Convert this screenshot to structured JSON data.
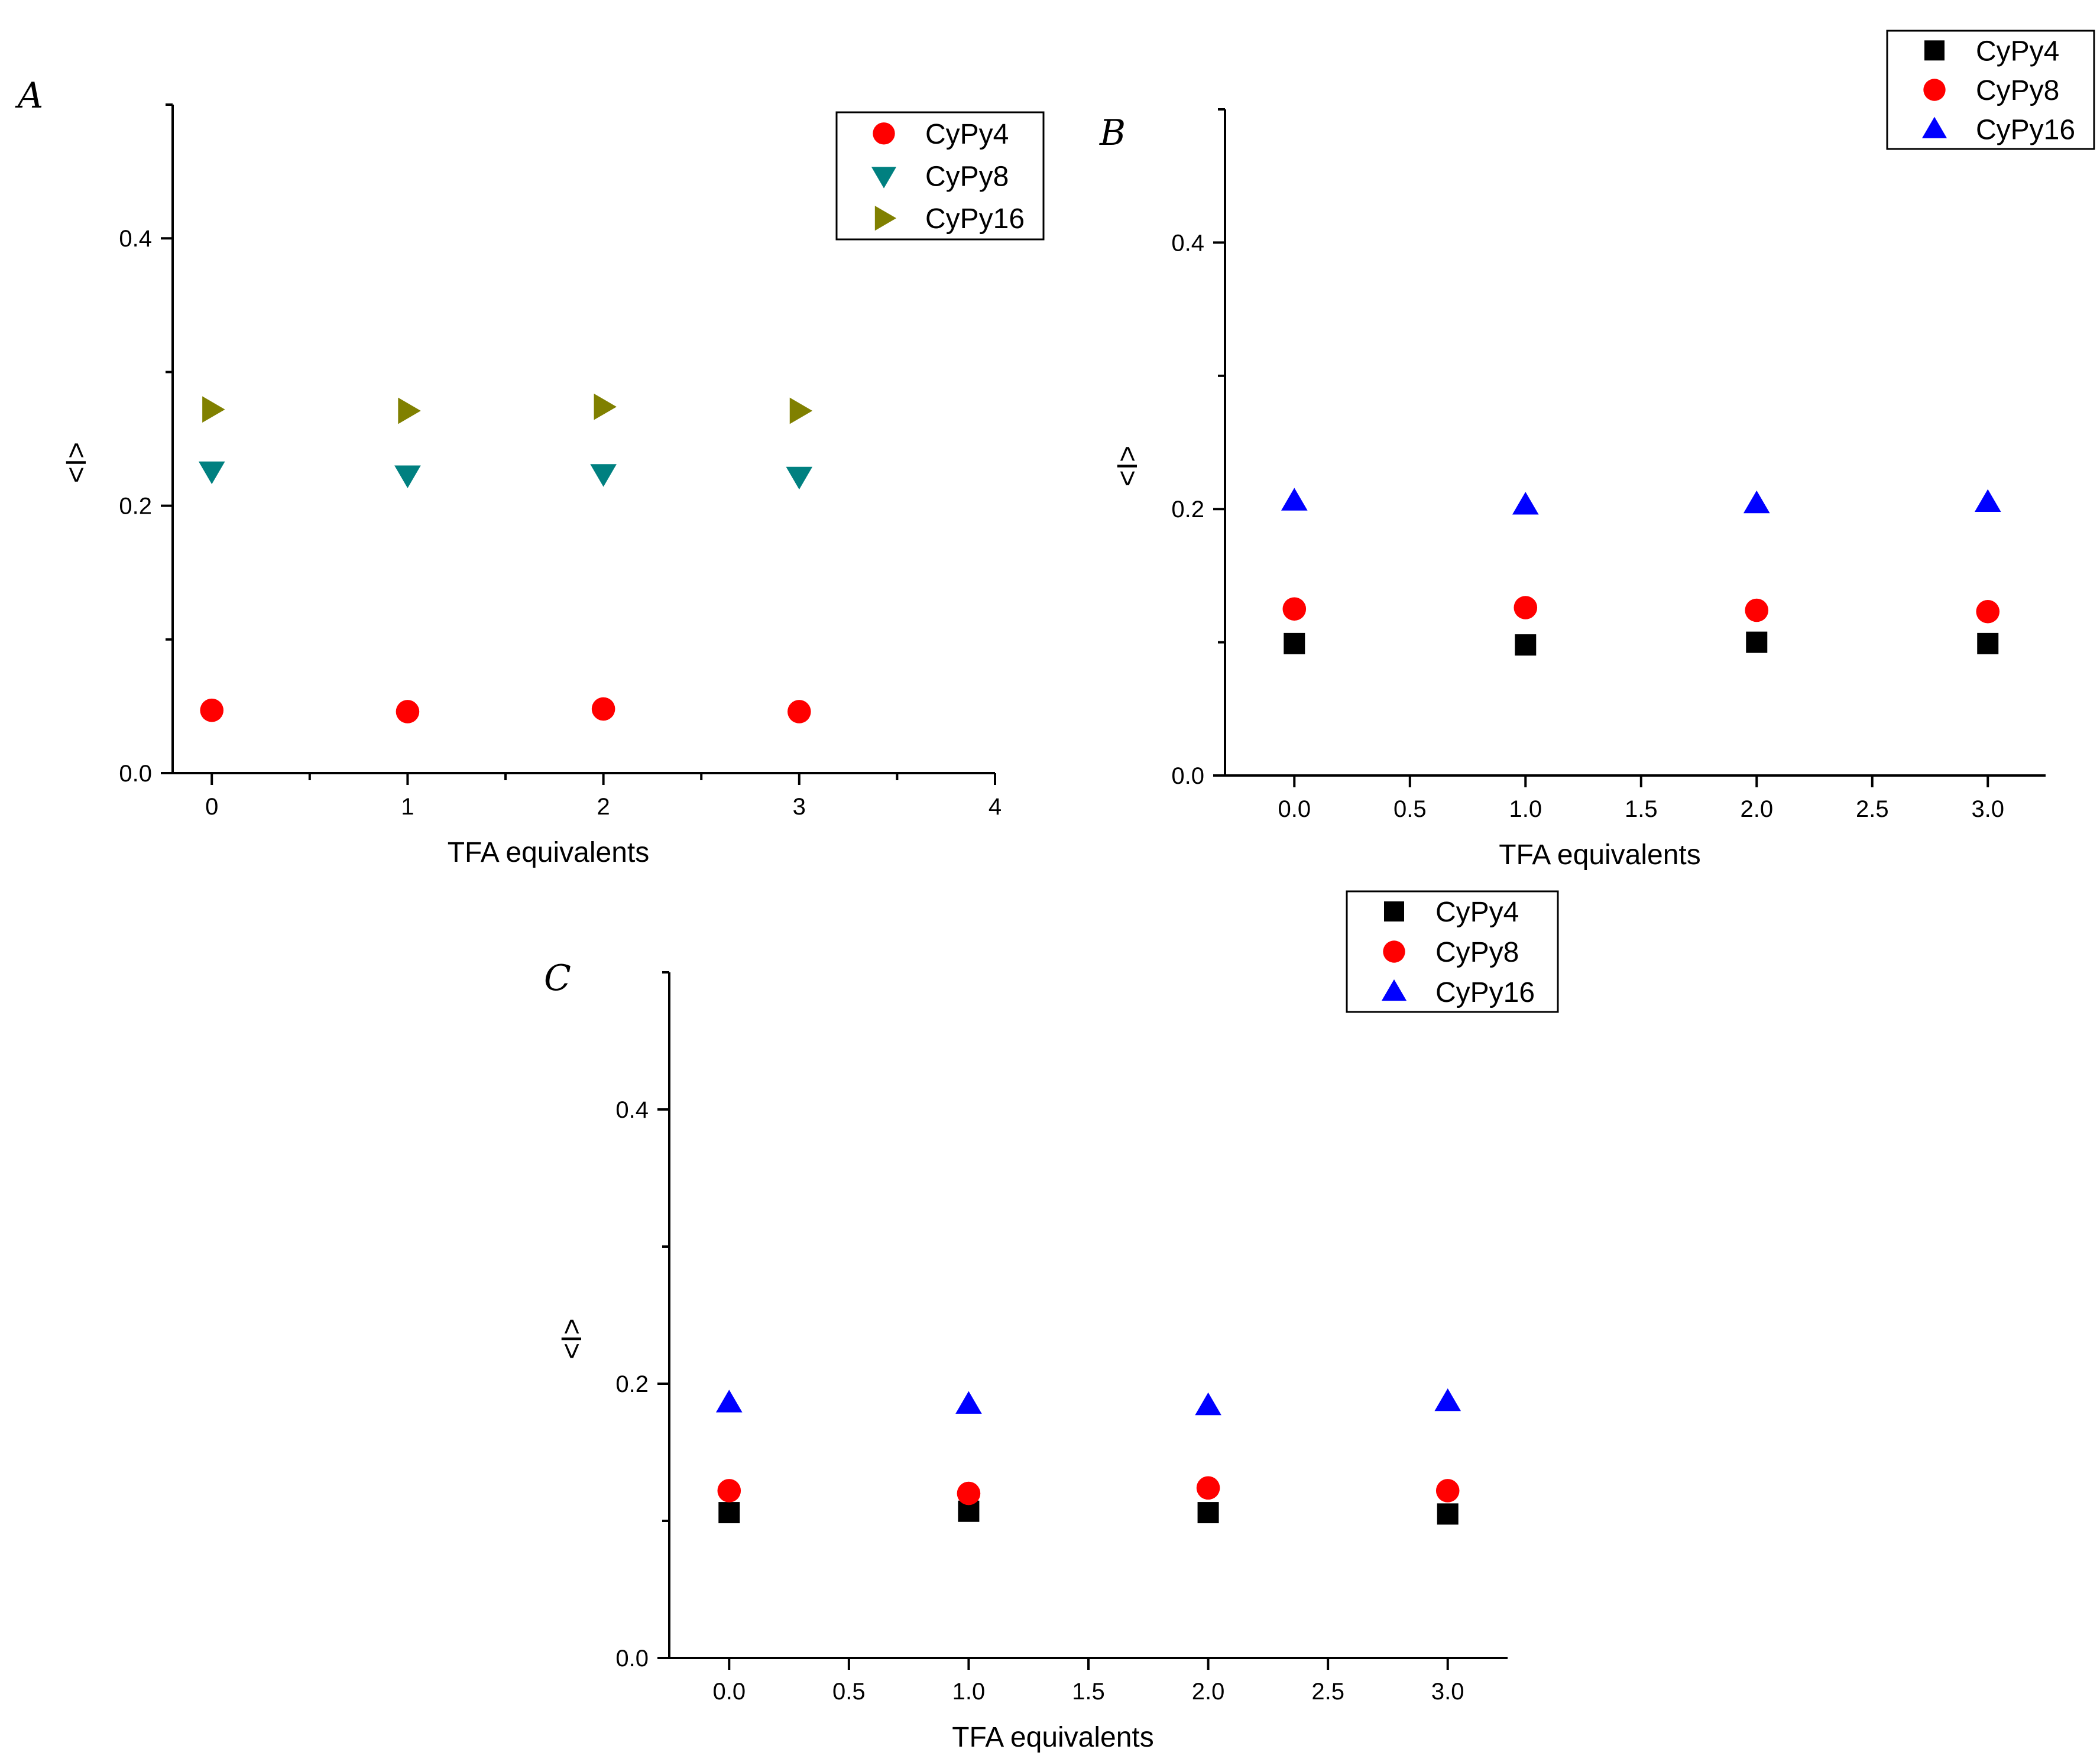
{
  "chart_data": [
    {
      "panel": "A",
      "type": "scatter",
      "xlabel": "TFA equivalents",
      "ylabel": "<I>",
      "xlim": [
        -0.2,
        4
      ],
      "ylim": [
        0,
        0.5
      ],
      "xticks": [
        0,
        1,
        2,
        3,
        4
      ],
      "xtick_labels": [
        "0",
        "1",
        "2",
        "3",
        "4"
      ],
      "yticks": [
        0.0,
        0.2,
        0.4
      ],
      "ytick_labels": [
        "0.0",
        "0.2",
        "0.4"
      ],
      "legend_position": "top-right",
      "series": [
        {
          "name": "CyPy4",
          "marker": "circle",
          "color": "#ff0000",
          "x": [
            0,
            1,
            2,
            3
          ],
          "y": [
            0.047,
            0.046,
            0.048,
            0.046
          ]
        },
        {
          "name": "CyPy8",
          "marker": "triangle-down",
          "color": "#008080",
          "x": [
            0,
            1,
            2,
            3
          ],
          "y": [
            0.226,
            0.223,
            0.224,
            0.222
          ]
        },
        {
          "name": "CyPy16",
          "marker": "triangle-right",
          "color": "#808000",
          "x": [
            0,
            1,
            2,
            3
          ],
          "y": [
            0.272,
            0.271,
            0.274,
            0.271
          ]
        }
      ]
    },
    {
      "panel": "B",
      "type": "scatter",
      "xlabel": "TFA equivalents",
      "ylabel": "<I>",
      "xlim": [
        -0.3,
        3.25
      ],
      "ylim": [
        0,
        0.5
      ],
      "xticks": [
        0,
        0.5,
        1,
        1.5,
        2,
        2.5,
        3
      ],
      "xtick_labels": [
        "0.0",
        "0.5",
        "1.0",
        "1.5",
        "2.0",
        "2.5",
        "3.0"
      ],
      "yticks": [
        0.0,
        0.2,
        0.4
      ],
      "ytick_labels": [
        "0.0",
        "0.2",
        "0.4"
      ],
      "legend_position": "top-right",
      "series": [
        {
          "name": "CyPy4",
          "marker": "square",
          "color": "#000000",
          "x": [
            0,
            1,
            2,
            3
          ],
          "y": [
            0.099,
            0.098,
            0.1,
            0.099
          ]
        },
        {
          "name": "CyPy8",
          "marker": "circle",
          "color": "#ff0000",
          "x": [
            0,
            1,
            2,
            3
          ],
          "y": [
            0.125,
            0.126,
            0.124,
            0.123
          ]
        },
        {
          "name": "CyPy16",
          "marker": "triangle-up",
          "color": "#0000ff",
          "x": [
            0,
            1,
            2,
            3
          ],
          "y": [
            0.206,
            0.203,
            0.204,
            0.205
          ]
        }
      ]
    },
    {
      "panel": "C",
      "type": "scatter",
      "xlabel": "TFA equivalents",
      "ylabel": "<I>",
      "xlim": [
        -0.25,
        3.25
      ],
      "ylim": [
        0,
        0.5
      ],
      "xticks": [
        0,
        0.5,
        1,
        1.5,
        2,
        2.5,
        3
      ],
      "xtick_labels": [
        "0.0",
        "0.5",
        "1.0",
        "1.5",
        "2.0",
        "2.5",
        "3.0"
      ],
      "yticks": [
        0.0,
        0.2,
        0.4
      ],
      "ytick_labels": [
        "0.0",
        "0.2",
        "0.4"
      ],
      "legend_position": "top-right",
      "series": [
        {
          "name": "CyPy4",
          "marker": "square",
          "color": "#000000",
          "x": [
            0,
            1,
            2,
            3
          ],
          "y": [
            0.106,
            0.107,
            0.106,
            0.105
          ]
        },
        {
          "name": "CyPy8",
          "marker": "circle",
          "color": "#ff0000",
          "x": [
            0,
            1,
            2,
            3
          ],
          "y": [
            0.122,
            0.12,
            0.124,
            0.122
          ]
        },
        {
          "name": "CyPy16",
          "marker": "triangle-up",
          "color": "#0000ff",
          "x": [
            0,
            1,
            2,
            3
          ],
          "y": [
            0.186,
            0.185,
            0.184,
            0.187
          ]
        }
      ]
    }
  ]
}
